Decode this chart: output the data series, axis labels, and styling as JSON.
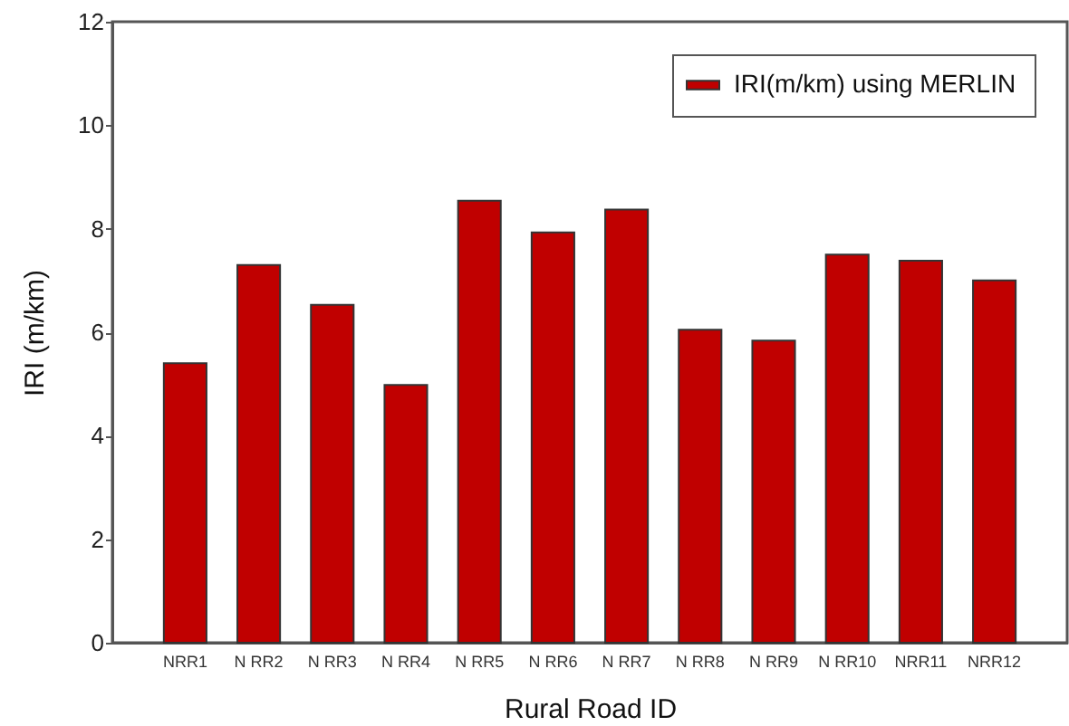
{
  "chart_data": {
    "type": "bar",
    "categories": [
      "NRR1",
      "N RR2",
      "N RR3",
      "N RR4",
      "N RR5",
      "N RR6",
      "N RR7",
      "N RR8",
      "N RR9",
      "N RR10",
      "NRR11",
      "NRR12"
    ],
    "series": [
      {
        "name": "IRI(m/km) using MERLIN",
        "color": "#c00000",
        "values": [
          5.4,
          7.3,
          6.53,
          4.98,
          8.54,
          7.93,
          8.37,
          6.05,
          5.84,
          7.5,
          7.38,
          7.0
        ]
      }
    ],
    "xlabel": "Rural Road ID",
    "ylabel": "IRI (m/km)",
    "ylim": [
      0,
      12
    ],
    "yticks": [
      0,
      2,
      4,
      6,
      8,
      10,
      12
    ],
    "grid": false,
    "legend": "top right"
  }
}
